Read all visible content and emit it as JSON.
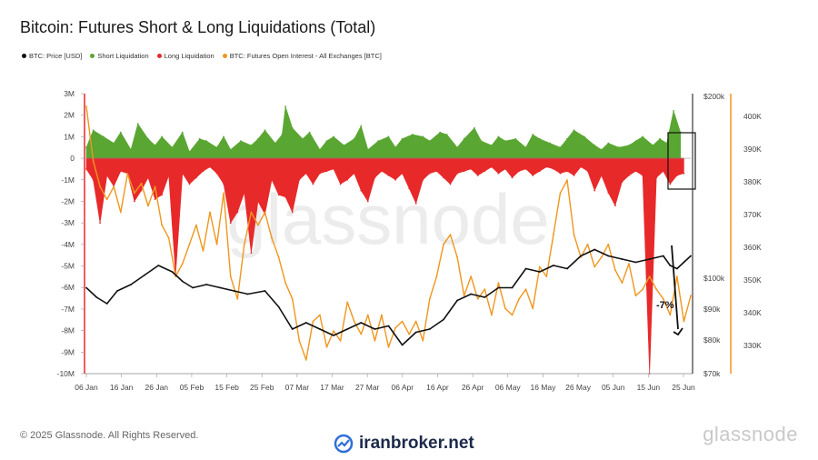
{
  "chart_data": {
    "type": "area",
    "title": "Bitcoin: Futures Short & Long Liquidations (Total)",
    "legend": [
      "BTC: Price [USD]",
      "Short Liquidation",
      "Long Liquidation",
      "BTC: Futures Open Interest - All Exchanges [BTC]"
    ],
    "legend_placement": "top-left",
    "x_ticks": [
      "06 Jan",
      "16 Jan",
      "26 Jan",
      "05 Feb",
      "15 Feb",
      "25 Feb",
      "07 Mar",
      "17 Mar",
      "27 Mar",
      "06 Apr",
      "16 Apr",
      "26 Apr",
      "06 May",
      "16 May",
      "26 May",
      "05 Jun",
      "15 Jun",
      "25 Jun"
    ],
    "y_left_ticks": [
      "3M",
      "2M",
      "1M",
      "0",
      "-1M",
      "-2M",
      "-3M",
      "-4M",
      "-5M",
      "-6M",
      "-7M",
      "-8M",
      "-9M",
      "-10M"
    ],
    "y_left_range": [
      -10000000,
      3000000
    ],
    "price_ticks": [
      "$200k",
      "$100k",
      "$90k",
      "$80k",
      "$70k"
    ],
    "oi_ticks": [
      "400K",
      "390K",
      "380K",
      "370K",
      "360K",
      "350K",
      "340K",
      "330K"
    ],
    "oi_range": [
      322000,
      407000
    ],
    "grid": false,
    "annotation": "-7%",
    "series": [
      {
        "name": "BTC: Price [USD]",
        "color": "#111111",
        "x": [
          0,
          3,
          6,
          9,
          13,
          17,
          21,
          25,
          28,
          31,
          35,
          39,
          43,
          47,
          52,
          56,
          60,
          64,
          68,
          72,
          76,
          80,
          84,
          88,
          92,
          96,
          100,
          104,
          108,
          112,
          116,
          120,
          124,
          128,
          132,
          136,
          140,
          144,
          148,
          152,
          156,
          160,
          164,
          168,
          170,
          172,
          174,
          176
        ],
        "values": [
          97000,
          94000,
          92000,
          96000,
          98000,
          101000,
          104000,
          102000,
          99000,
          97000,
          98000,
          97000,
          96000,
          95000,
          96000,
          91000,
          84000,
          86000,
          84000,
          82000,
          84000,
          86000,
          84000,
          85000,
          79000,
          83000,
          84000,
          87000,
          93000,
          95000,
          94000,
          97000,
          97000,
          103000,
          102000,
          104000,
          103000,
          107000,
          109000,
          107000,
          106000,
          105000,
          106000,
          107000,
          104000,
          103000,
          105000,
          107000
        ]
      },
      {
        "name": "BTC: Futures Open Interest - All Exchanges [BTC]",
        "color": "#f0961e",
        "x": [
          0,
          2,
          4,
          6,
          8,
          10,
          12,
          14,
          16,
          18,
          20,
          22,
          24,
          26,
          28,
          30,
          32,
          34,
          36,
          38,
          40,
          42,
          44,
          46,
          48,
          50,
          52,
          54,
          56,
          58,
          60,
          62,
          64,
          66,
          68,
          70,
          72,
          74,
          76,
          78,
          80,
          82,
          84,
          86,
          88,
          90,
          92,
          94,
          96,
          98,
          100,
          102,
          104,
          106,
          108,
          110,
          112,
          114,
          116,
          118,
          120,
          122,
          124,
          126,
          128,
          130,
          132,
          134,
          136,
          138,
          140,
          142,
          144,
          146,
          148,
          150,
          152,
          154,
          156,
          158,
          160,
          162,
          164,
          166,
          168,
          170,
          172,
          174,
          176
        ],
        "values": [
          405000,
          388000,
          380000,
          376000,
          380000,
          372000,
          384000,
          378000,
          381000,
          374000,
          380000,
          368000,
          364000,
          352000,
          356000,
          362000,
          368000,
          360000,
          372000,
          362000,
          378000,
          352000,
          345000,
          362000,
          372000,
          368000,
          372000,
          364000,
          358000,
          350000,
          345000,
          332000,
          326000,
          338000,
          340000,
          330000,
          335000,
          332000,
          344000,
          338000,
          334000,
          340000,
          332000,
          340000,
          330000,
          336000,
          338000,
          334000,
          338000,
          332000,
          345000,
          352000,
          362000,
          365000,
          358000,
          346000,
          352000,
          345000,
          348000,
          340000,
          350000,
          342000,
          340000,
          345000,
          348000,
          342000,
          355000,
          352000,
          365000,
          378000,
          382000,
          365000,
          358000,
          362000,
          355000,
          358000,
          362000,
          354000,
          350000,
          356000,
          346000,
          348000,
          352000,
          348000,
          345000,
          340000,
          352000,
          338000,
          346000
        ]
      },
      {
        "name": "Short Liquidation",
        "color": "#5aa632",
        "x": [
          0,
          2,
          5,
          8,
          10,
          13,
          15,
          18,
          20,
          22,
          25,
          28,
          30,
          33,
          35,
          38,
          40,
          42,
          45,
          48,
          50,
          52,
          55,
          57,
          58,
          60,
          63,
          65,
          68,
          70,
          72,
          75,
          78,
          80,
          82,
          85,
          88,
          90,
          92,
          95,
          98,
          100,
          103,
          105,
          108,
          110,
          113,
          115,
          118,
          120,
          122,
          125,
          128,
          130,
          132,
          135,
          138,
          140,
          142,
          145,
          148,
          150,
          152,
          155,
          158,
          160,
          162,
          165,
          167,
          169,
          171,
          173
        ],
        "values": [
          500000,
          1300000,
          1000000,
          700000,
          1200000,
          400000,
          1600000,
          900000,
          600000,
          1000000,
          500000,
          1200000,
          300000,
          900000,
          800000,
          500000,
          1000000,
          400000,
          800000,
          600000,
          900000,
          1300000,
          700000,
          1100000,
          2400000,
          1400000,
          900000,
          1200000,
          400000,
          800000,
          1000000,
          600000,
          900000,
          1500000,
          400000,
          800000,
          1000000,
          500000,
          900000,
          1100000,
          1000000,
          800000,
          1200000,
          1100000,
          500000,
          900000,
          1400000,
          800000,
          600000,
          1000000,
          800000,
          900000,
          500000,
          1100000,
          900000,
          700000,
          500000,
          900000,
          1300000,
          1000000,
          600000,
          400000,
          700000,
          500000,
          600000,
          800000,
          1000000,
          600000,
          900000,
          700000,
          2200000,
          1200000
        ]
      },
      {
        "name": "Long Liquidation",
        "color": "#e8292a",
        "x": [
          0,
          2,
          4,
          6,
          8,
          10,
          12,
          14,
          16,
          18,
          20,
          22,
          24,
          26,
          28,
          30,
          32,
          34,
          36,
          38,
          40,
          42,
          44,
          46,
          48,
          50,
          52,
          54,
          56,
          58,
          60,
          62,
          64,
          66,
          68,
          70,
          72,
          74,
          76,
          78,
          80,
          82,
          84,
          86,
          88,
          90,
          92,
          94,
          96,
          98,
          100,
          102,
          104,
          106,
          108,
          110,
          112,
          114,
          116,
          118,
          120,
          122,
          124,
          126,
          128,
          130,
          132,
          134,
          136,
          138,
          140,
          142,
          144,
          146,
          148,
          150,
          152,
          154,
          156,
          158,
          160,
          162,
          164,
          166,
          168,
          170,
          172,
          174
        ],
        "values": [
          -500000,
          -1000000,
          -3000000,
          -800000,
          -1300000,
          -600000,
          -700000,
          -2000000,
          -1500000,
          -900000,
          -1900000,
          -1700000,
          -800000,
          -5400000,
          -700000,
          -1200000,
          -900000,
          -600000,
          -400000,
          -700000,
          -1200000,
          -3000000,
          -2500000,
          -1600000,
          -4400000,
          -2000000,
          -2600000,
          -1000000,
          -1700000,
          -1800000,
          -2500000,
          -1000000,
          -700000,
          -1200000,
          -700000,
          -600000,
          -500000,
          -1200000,
          -1000000,
          -700000,
          -1500000,
          -2000000,
          -900000,
          -600000,
          -800000,
          -1000000,
          -700000,
          -1400000,
          -2100000,
          -1000000,
          -700000,
          -600000,
          -900000,
          -1200000,
          -700000,
          -600000,
          -500000,
          -800000,
          -600000,
          -400000,
          -700000,
          -500000,
          -900000,
          -600000,
          -500000,
          -800000,
          -600000,
          -400000,
          -500000,
          -700000,
          -600000,
          -800000,
          -400000,
          -600000,
          -1500000,
          -800000,
          -1600000,
          -2200000,
          -1100000,
          -800000,
          -600000,
          -800000,
          -10000000,
          -900000,
          -600000,
          -1200000,
          -800000,
          -700000
        ]
      }
    ]
  },
  "footer": {
    "copyright": "© 2025 Glassnode. All Rights Reserved.",
    "brand": "glassnode",
    "watermark": "glassnode",
    "iranbroker": "iranbroker.net"
  },
  "colors": {
    "price": "#111111",
    "short": "#5aa632",
    "long": "#e8292a",
    "oi": "#f0961e"
  }
}
